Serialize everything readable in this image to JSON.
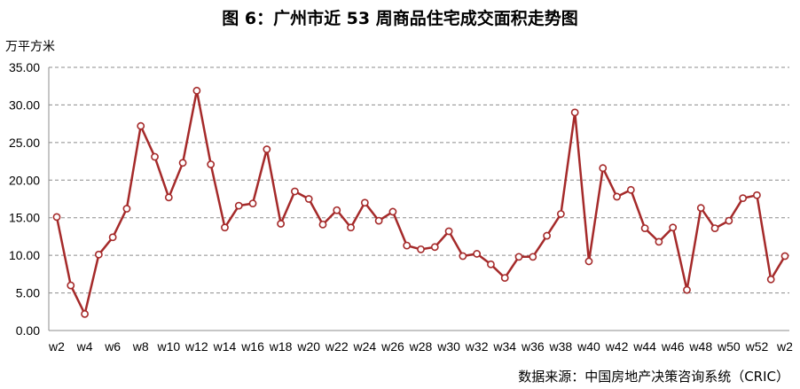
{
  "chart_data": {
    "type": "line",
    "title": "图 6：广州市近 53 周商品住宅成交面积走势图",
    "ylabel": "万平方米",
    "xlabel": "",
    "ylim": [
      0,
      35
    ],
    "yticks": [
      "0.00",
      "5.00",
      "10.00",
      "15.00",
      "20.00",
      "25.00",
      "30.00",
      "35.00"
    ],
    "x_tick_labels": [
      "w2",
      "w4",
      "w6",
      "w8",
      "w10",
      "w12",
      "w14",
      "w16",
      "w18",
      "w20",
      "w22",
      "w24",
      "w26",
      "w28",
      "w30",
      "w32",
      "w34",
      "w36",
      "w38",
      "w40",
      "w42",
      "w44",
      "w46",
      "w48",
      "w50",
      "w52",
      "w2"
    ],
    "categories": [
      "w2",
      "w3",
      "w4",
      "w5",
      "w6",
      "w7",
      "w8",
      "w9",
      "w10",
      "w11",
      "w12",
      "w13",
      "w14",
      "w15",
      "w16",
      "w17",
      "w18",
      "w19",
      "w20",
      "w21",
      "w22",
      "w23",
      "w24",
      "w25",
      "w26",
      "w27",
      "w28",
      "w29",
      "w30",
      "w31",
      "w32",
      "w33",
      "w34",
      "w35",
      "w36",
      "w37",
      "w38",
      "w39",
      "w40",
      "w41",
      "w42",
      "w43",
      "w44",
      "w45",
      "w46",
      "w47",
      "w48",
      "w49",
      "w50",
      "w51",
      "w52",
      "w1",
      "w2"
    ],
    "values": [
      15.1,
      6.0,
      2.2,
      10.1,
      12.4,
      16.2,
      27.2,
      23.1,
      17.7,
      22.3,
      31.9,
      22.1,
      13.7,
      16.6,
      16.9,
      24.1,
      14.2,
      18.5,
      17.5,
      14.1,
      16.0,
      13.7,
      17.0,
      14.6,
      15.8,
      11.3,
      10.8,
      11.1,
      13.2,
      9.9,
      10.2,
      8.8,
      7.0,
      9.8,
      9.8,
      12.6,
      15.5,
      29.0,
      9.2,
      21.6,
      17.8,
      18.7,
      13.6,
      11.8,
      13.7,
      5.4,
      16.3,
      13.6,
      14.6,
      17.6,
      18.0,
      6.8,
      9.9
    ],
    "grid": true,
    "legend": "none",
    "line_color": "#a52a2a",
    "marker_fill": "#ffffff"
  },
  "source": "数据来源：中国房地产决策咨询系统（CRIC）"
}
